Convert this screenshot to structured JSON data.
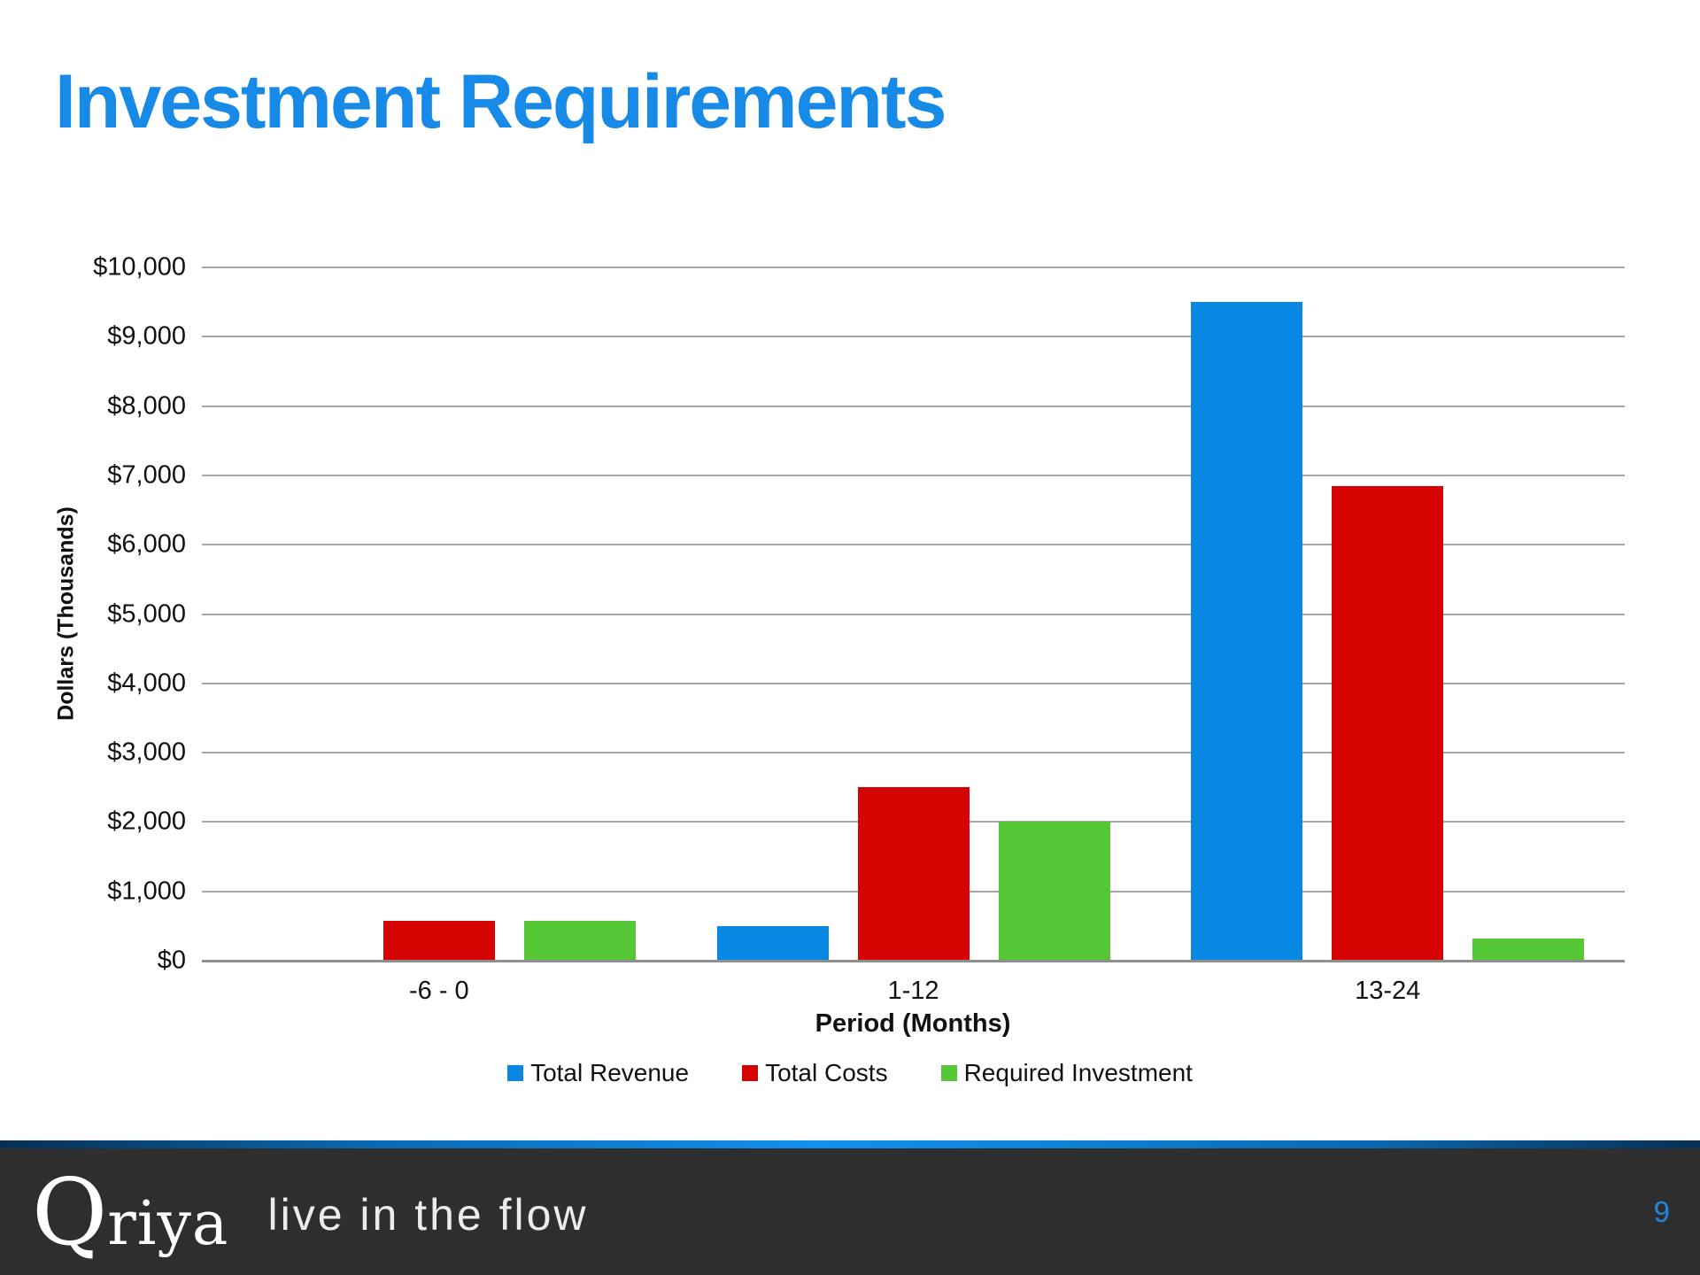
{
  "slide": {
    "title": "Investment Requirements",
    "page_number": "9",
    "footer": {
      "logo_q": "Q",
      "logo_rest": "riya",
      "tagline": "live in the flow"
    }
  },
  "colors": {
    "title_blue": "#1789e6",
    "bar_blue": "#0887e3",
    "bar_red": "#d50402",
    "bar_green": "#56c838",
    "gridline_gray": "#a6a6a6",
    "footer_dark": "#2e2e2e",
    "footer_accent_blue": "#1190ee",
    "page_number_blue": "#1e87e0"
  },
  "chart_data": {
    "type": "bar",
    "title": "",
    "categories": [
      "-6 - 0",
      "1-12",
      "13-24"
    ],
    "series": [
      {
        "name": "Total Revenue",
        "color": "#0887e3",
        "values": [
          0,
          500,
          9500
        ]
      },
      {
        "name": "Total Costs",
        "color": "#d50402",
        "values": [
          580,
          2500,
          6850
        ]
      },
      {
        "name": "Required Investment",
        "color": "#56c838",
        "values": [
          580,
          2000,
          320
        ]
      }
    ],
    "xlabel": "Period (Months)",
    "ylabel": "Dollars (Thousands)",
    "ylim": [
      0,
      10000
    ],
    "ytick_step": 1000,
    "ytick_labels": [
      "$0",
      "$1,000",
      "$2,000",
      "$3,000",
      "$4,000",
      "$5,000",
      "$6,000",
      "$7,000",
      "$8,000",
      "$9,000",
      "$10,000"
    ],
    "grid": true,
    "legend_position": "bottom"
  }
}
